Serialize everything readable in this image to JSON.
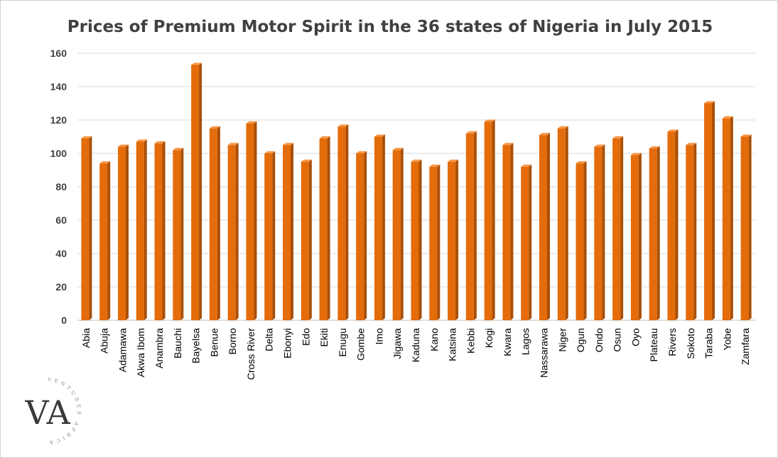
{
  "colors": {
    "bar_front": "#E46C0A",
    "bar_top": "#F79646",
    "bar_side": "#A94F07",
    "grid": "#D9D9D9",
    "axis": "#BFBFBF",
    "text": "#404040"
  },
  "logo": {
    "monogram": "VA",
    "ring_text": "VENTURES AFRICA"
  },
  "chart_data": {
    "type": "bar",
    "title": "Prices of Premium Motor Spirit in the 36 states of Nigeria in July 2015",
    "xlabel": "",
    "ylabel": "",
    "ylim": [
      0,
      160
    ],
    "yticks": [
      0,
      20,
      40,
      60,
      80,
      100,
      120,
      140,
      160
    ],
    "grid": true,
    "legend": "none",
    "categories": [
      "Abia",
      "Abuja",
      "Adamawa",
      "Akwa Ibom",
      "Anambra",
      "Bauchi",
      "Bayelsa",
      "Benue",
      "Borno",
      "Cross River",
      "Delta",
      "Ebonyi",
      "Edo",
      "Ekiti",
      "Enugu",
      "Gombe",
      "Imo",
      "Jigawa",
      "Kaduna",
      "Kano",
      "Katsina",
      "Kebbi",
      "Kogi",
      "Kwara",
      "Lagos",
      "Nassarawa",
      "Niger",
      "Ogun",
      "Ondo",
      "Osun",
      "Oyo",
      "Plateau",
      "Rivers",
      "Sokoto",
      "Taraba",
      "Yobe",
      "Zamfara"
    ],
    "values": [
      109,
      94,
      104,
      107,
      106,
      102,
      153,
      115,
      105,
      118,
      100,
      105,
      95,
      109,
      116,
      100,
      110,
      102,
      95,
      92,
      95,
      112,
      119,
      105,
      92,
      111,
      115,
      94,
      104,
      109,
      99,
      103,
      113,
      105,
      130,
      121,
      110
    ]
  }
}
